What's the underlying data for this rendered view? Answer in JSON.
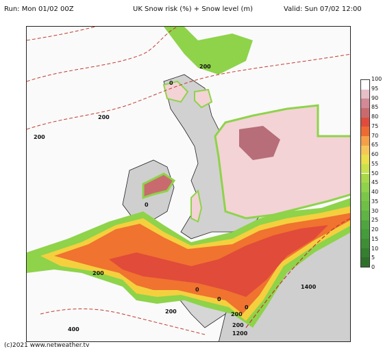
{
  "header": {
    "run": "Run: Mon 01/02 00Z",
    "title": "UK Snow risk (%) + Snow level (m)",
    "valid": "Valid: Sun 07/02 12:00"
  },
  "credit": "(c)2021 www.netweather.tv",
  "contour_labels": [
    "200",
    "200",
    "200",
    "0",
    "0",
    "0",
    "200",
    "200",
    "200",
    "0",
    "0",
    "1400",
    "400",
    "200",
    "1200"
  ],
  "legend": {
    "ticks": [
      "100",
      "95",
      "90",
      "85",
      "80",
      "75",
      "70",
      "65",
      "60",
      "55",
      "50",
      "45",
      "40",
      "35",
      "30",
      "25",
      "20",
      "15",
      "10",
      "5",
      "0"
    ],
    "colors": [
      "#ffffff",
      "#e6c0c7",
      "#d28a96",
      "#c96b6e",
      "#e04c3c",
      "#ee6a33",
      "#f5a048",
      "#f7c659",
      "#ecdf4c",
      "#c9e24c",
      "#a8d84a",
      "#8ed34a",
      "#7bc849",
      "#6fbf46",
      "#5fb443",
      "#4fa63f",
      "#449c3a",
      "#3d8e35",
      "#357f30",
      "#2e702b"
    ]
  },
  "colors": {
    "sea": "#fafafa",
    "land_grey": "#c9c9c9",
    "contour": "#c0392b",
    "pink": "#f3d3d5",
    "dark_pink": "#b76e78",
    "red": "#e14b3a",
    "orange": "#f0732f",
    "yellow": "#f4d03f",
    "green": "#8ed34a"
  }
}
